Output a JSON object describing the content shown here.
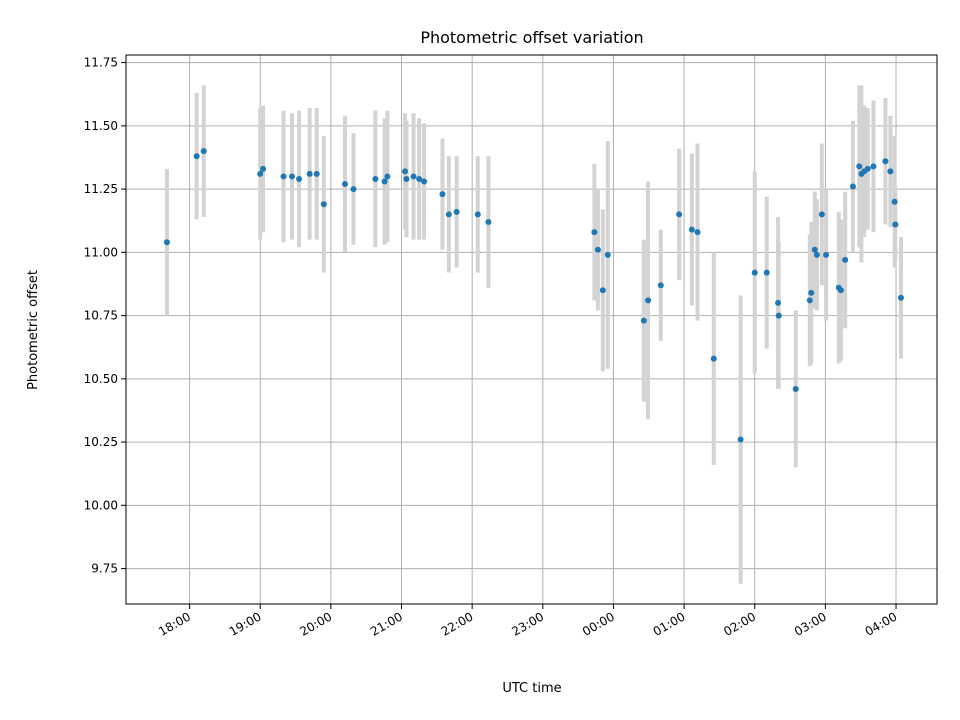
{
  "chart_data": {
    "type": "scatter",
    "title": "Photometric offset variation",
    "xlabel": "UTC time",
    "ylabel": "Photometric offset",
    "grid": true,
    "x_tick_labels": [
      "18:00",
      "19:00",
      "20:00",
      "21:00",
      "22:00",
      "23:00",
      "00:00",
      "01:00",
      "02:00",
      "03:00",
      "04:00"
    ],
    "x_tick_hours": [
      18,
      19,
      20,
      21,
      22,
      23,
      24,
      25,
      26,
      27,
      28
    ],
    "xlim_hours": [
      17.1,
      28.58
    ],
    "y_tick_labels": [
      "9.75",
      "10.00",
      "10.25",
      "10.50",
      "10.75",
      "11.00",
      "11.25",
      "11.50",
      "11.75"
    ],
    "y_ticks": [
      9.75,
      10.0,
      10.25,
      10.5,
      10.75,
      11.0,
      11.25,
      11.5,
      11.75
    ],
    "ylim": [
      9.61,
      11.78
    ],
    "colors": {
      "point": "#1f77b4",
      "errorbar": "#d3d3d3",
      "grid": "#b0b0b0"
    },
    "series": [
      {
        "x_hours": [
          17.68,
          18.1,
          18.2,
          19.0,
          19.04,
          19.33,
          19.45,
          19.55,
          19.7,
          19.8,
          19.9,
          20.2,
          20.32,
          20.63,
          20.76,
          20.8,
          21.05,
          21.07,
          21.17,
          21.25,
          21.32,
          21.58,
          21.67,
          21.78,
          22.08,
          22.23,
          23.73,
          23.78,
          23.85,
          23.92,
          24.43,
          24.49,
          24.67,
          24.93,
          25.11,
          25.19,
          25.42,
          25.8,
          26.0,
          26.17,
          26.33,
          26.34,
          26.58,
          26.78,
          26.8,
          26.85,
          26.88,
          26.95,
          27.01,
          27.19,
          27.22,
          27.28,
          27.39,
          27.48,
          27.51,
          27.55,
          27.6,
          27.68,
          27.85,
          27.92,
          27.98,
          27.99,
          28.07
        ],
        "y": [
          11.04,
          11.38,
          11.4,
          11.31,
          11.33,
          11.3,
          11.3,
          11.29,
          11.31,
          11.31,
          11.19,
          11.27,
          11.25,
          11.29,
          11.28,
          11.3,
          11.32,
          11.29,
          11.3,
          11.29,
          11.28,
          11.23,
          11.15,
          11.16,
          11.15,
          11.12,
          11.08,
          11.01,
          10.85,
          10.99,
          10.73,
          10.81,
          10.87,
          11.15,
          11.09,
          11.08,
          10.58,
          10.26,
          10.92,
          10.92,
          10.8,
          10.75,
          10.46,
          10.81,
          10.84,
          11.01,
          10.99,
          11.15,
          10.99,
          10.86,
          10.85,
          10.97,
          11.26,
          11.34,
          11.31,
          11.32,
          11.33,
          11.34,
          11.36,
          11.32,
          11.2,
          11.11,
          10.82
        ],
        "y_err": [
          0.29,
          0.25,
          0.26,
          0.26,
          0.25,
          0.26,
          0.25,
          0.27,
          0.26,
          0.26,
          0.27,
          0.27,
          0.22,
          0.27,
          0.25,
          0.26,
          0.23,
          0.23,
          0.25,
          0.24,
          0.23,
          0.22,
          0.23,
          0.22,
          0.23,
          0.26,
          0.27,
          0.24,
          0.32,
          0.45,
          0.32,
          0.47,
          0.22,
          0.26,
          0.3,
          0.35,
          0.42,
          0.57,
          0.4,
          0.3,
          0.34,
          0.29,
          0.31,
          0.26,
          0.28,
          0.23,
          0.22,
          0.28,
          0.26,
          0.3,
          0.28,
          0.27,
          0.26,
          0.32,
          0.35,
          0.26,
          0.24,
          0.26,
          0.25,
          0.22,
          0.26,
          0.15,
          0.24
        ]
      }
    ]
  }
}
